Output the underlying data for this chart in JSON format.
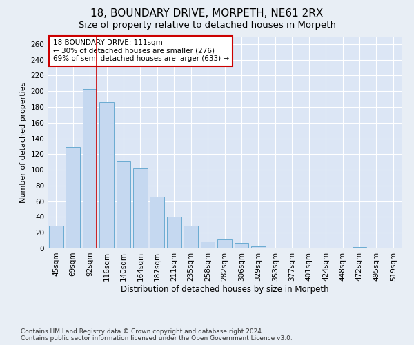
{
  "title": "18, BOUNDARY DRIVE, MORPETH, NE61 2RX",
  "subtitle": "Size of property relative to detached houses in Morpeth",
  "xlabel": "Distribution of detached houses by size in Morpeth",
  "ylabel": "Number of detached properties",
  "categories": [
    "45sqm",
    "69sqm",
    "92sqm",
    "116sqm",
    "140sqm",
    "164sqm",
    "187sqm",
    "211sqm",
    "235sqm",
    "258sqm",
    "282sqm",
    "306sqm",
    "329sqm",
    "353sqm",
    "377sqm",
    "401sqm",
    "424sqm",
    "448sqm",
    "472sqm",
    "495sqm",
    "519sqm"
  ],
  "values": [
    29,
    129,
    203,
    186,
    111,
    102,
    66,
    40,
    29,
    9,
    11,
    7,
    3,
    0,
    0,
    0,
    0,
    0,
    2,
    0,
    0
  ],
  "bar_color": "#c5d8f0",
  "bar_edge_color": "#6aabd2",
  "vline_color": "#cc0000",
  "vline_x_index": 2,
  "annotation_text": "18 BOUNDARY DRIVE: 111sqm\n← 30% of detached houses are smaller (276)\n69% of semi-detached houses are larger (633) →",
  "annotation_box_color": "#ffffff",
  "annotation_box_edge": "#cc0000",
  "annotation_fontsize": 7.5,
  "bg_color": "#e8eef5",
  "plot_bg_color": "#dce6f5",
  "footer": "Contains HM Land Registry data © Crown copyright and database right 2024.\nContains public sector information licensed under the Open Government Licence v3.0.",
  "title_fontsize": 11,
  "subtitle_fontsize": 9.5,
  "ylabel_fontsize": 8,
  "xlabel_fontsize": 8.5,
  "tick_fontsize": 7.5,
  "footer_fontsize": 6.5,
  "ylim": [
    0,
    270
  ],
  "yticks": [
    0,
    20,
    40,
    60,
    80,
    100,
    120,
    140,
    160,
    180,
    200,
    220,
    240,
    260
  ]
}
